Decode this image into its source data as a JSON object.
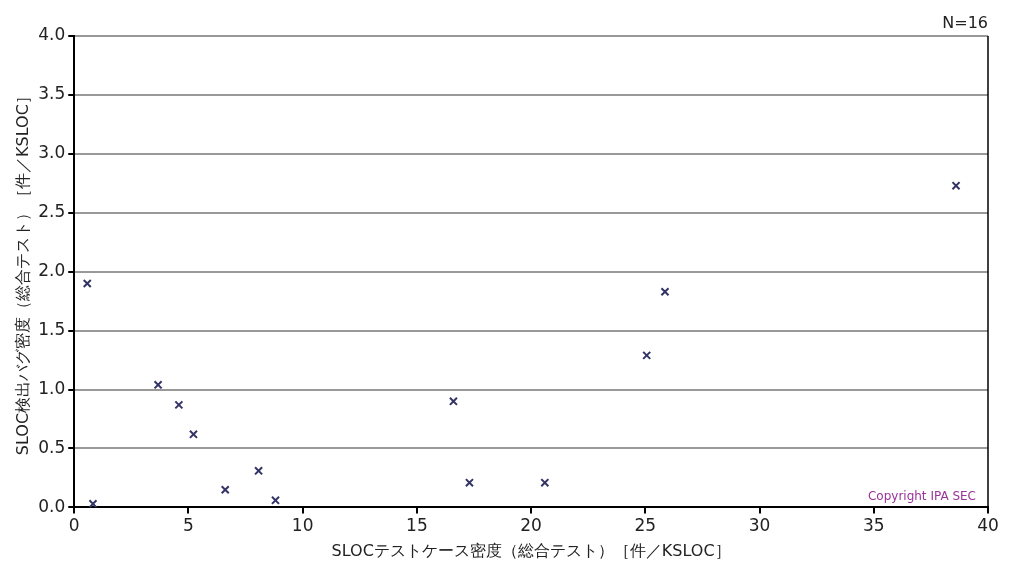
{
  "chart_data": {
    "type": "scatter",
    "xlabel": "SLOCテストケース密度（総合テスト）［件／KSLOC］",
    "ylabel": "SLOC検出バグ密度（総合テスト）［件／KSLOC］",
    "x": [
      0.57,
      0.82,
      3.67,
      4.58,
      5.22,
      6.61,
      8.07,
      8.81,
      16.6,
      17.3,
      20.6,
      25.06,
      25.86,
      38.6
    ],
    "series": [
      {
        "color": "#333366",
        "values": [
          1.9,
          0.03,
          1.04,
          0.87,
          0.62,
          0.15,
          0.31,
          0.06,
          0.9,
          0.21,
          0.21,
          1.29,
          1.83,
          2.73
        ]
      }
    ],
    "xlim": [
      0,
      40
    ],
    "xticks": [
      0,
      5,
      10,
      15,
      20,
      25,
      30,
      35,
      40
    ],
    "ylim": [
      0,
      4
    ],
    "yticks": [
      {
        "value": 0,
        "label": "0.0"
      },
      {
        "value": 0.5,
        "label": "0.5"
      },
      {
        "value": 1,
        "label": "1.0"
      },
      {
        "value": 1.5,
        "label": "1.5"
      },
      {
        "value": 2,
        "label": "2.0"
      },
      {
        "value": 2.5,
        "label": "2.5"
      },
      {
        "value": 3,
        "label": "3.0"
      },
      {
        "value": 3.5,
        "label": "3.5"
      },
      {
        "value": 4,
        "label": "4.0"
      }
    ],
    "grid": "y",
    "marker": "cross",
    "legend": false,
    "annotations": [
      "N=16",
      "Copyright IPA SEC"
    ]
  }
}
